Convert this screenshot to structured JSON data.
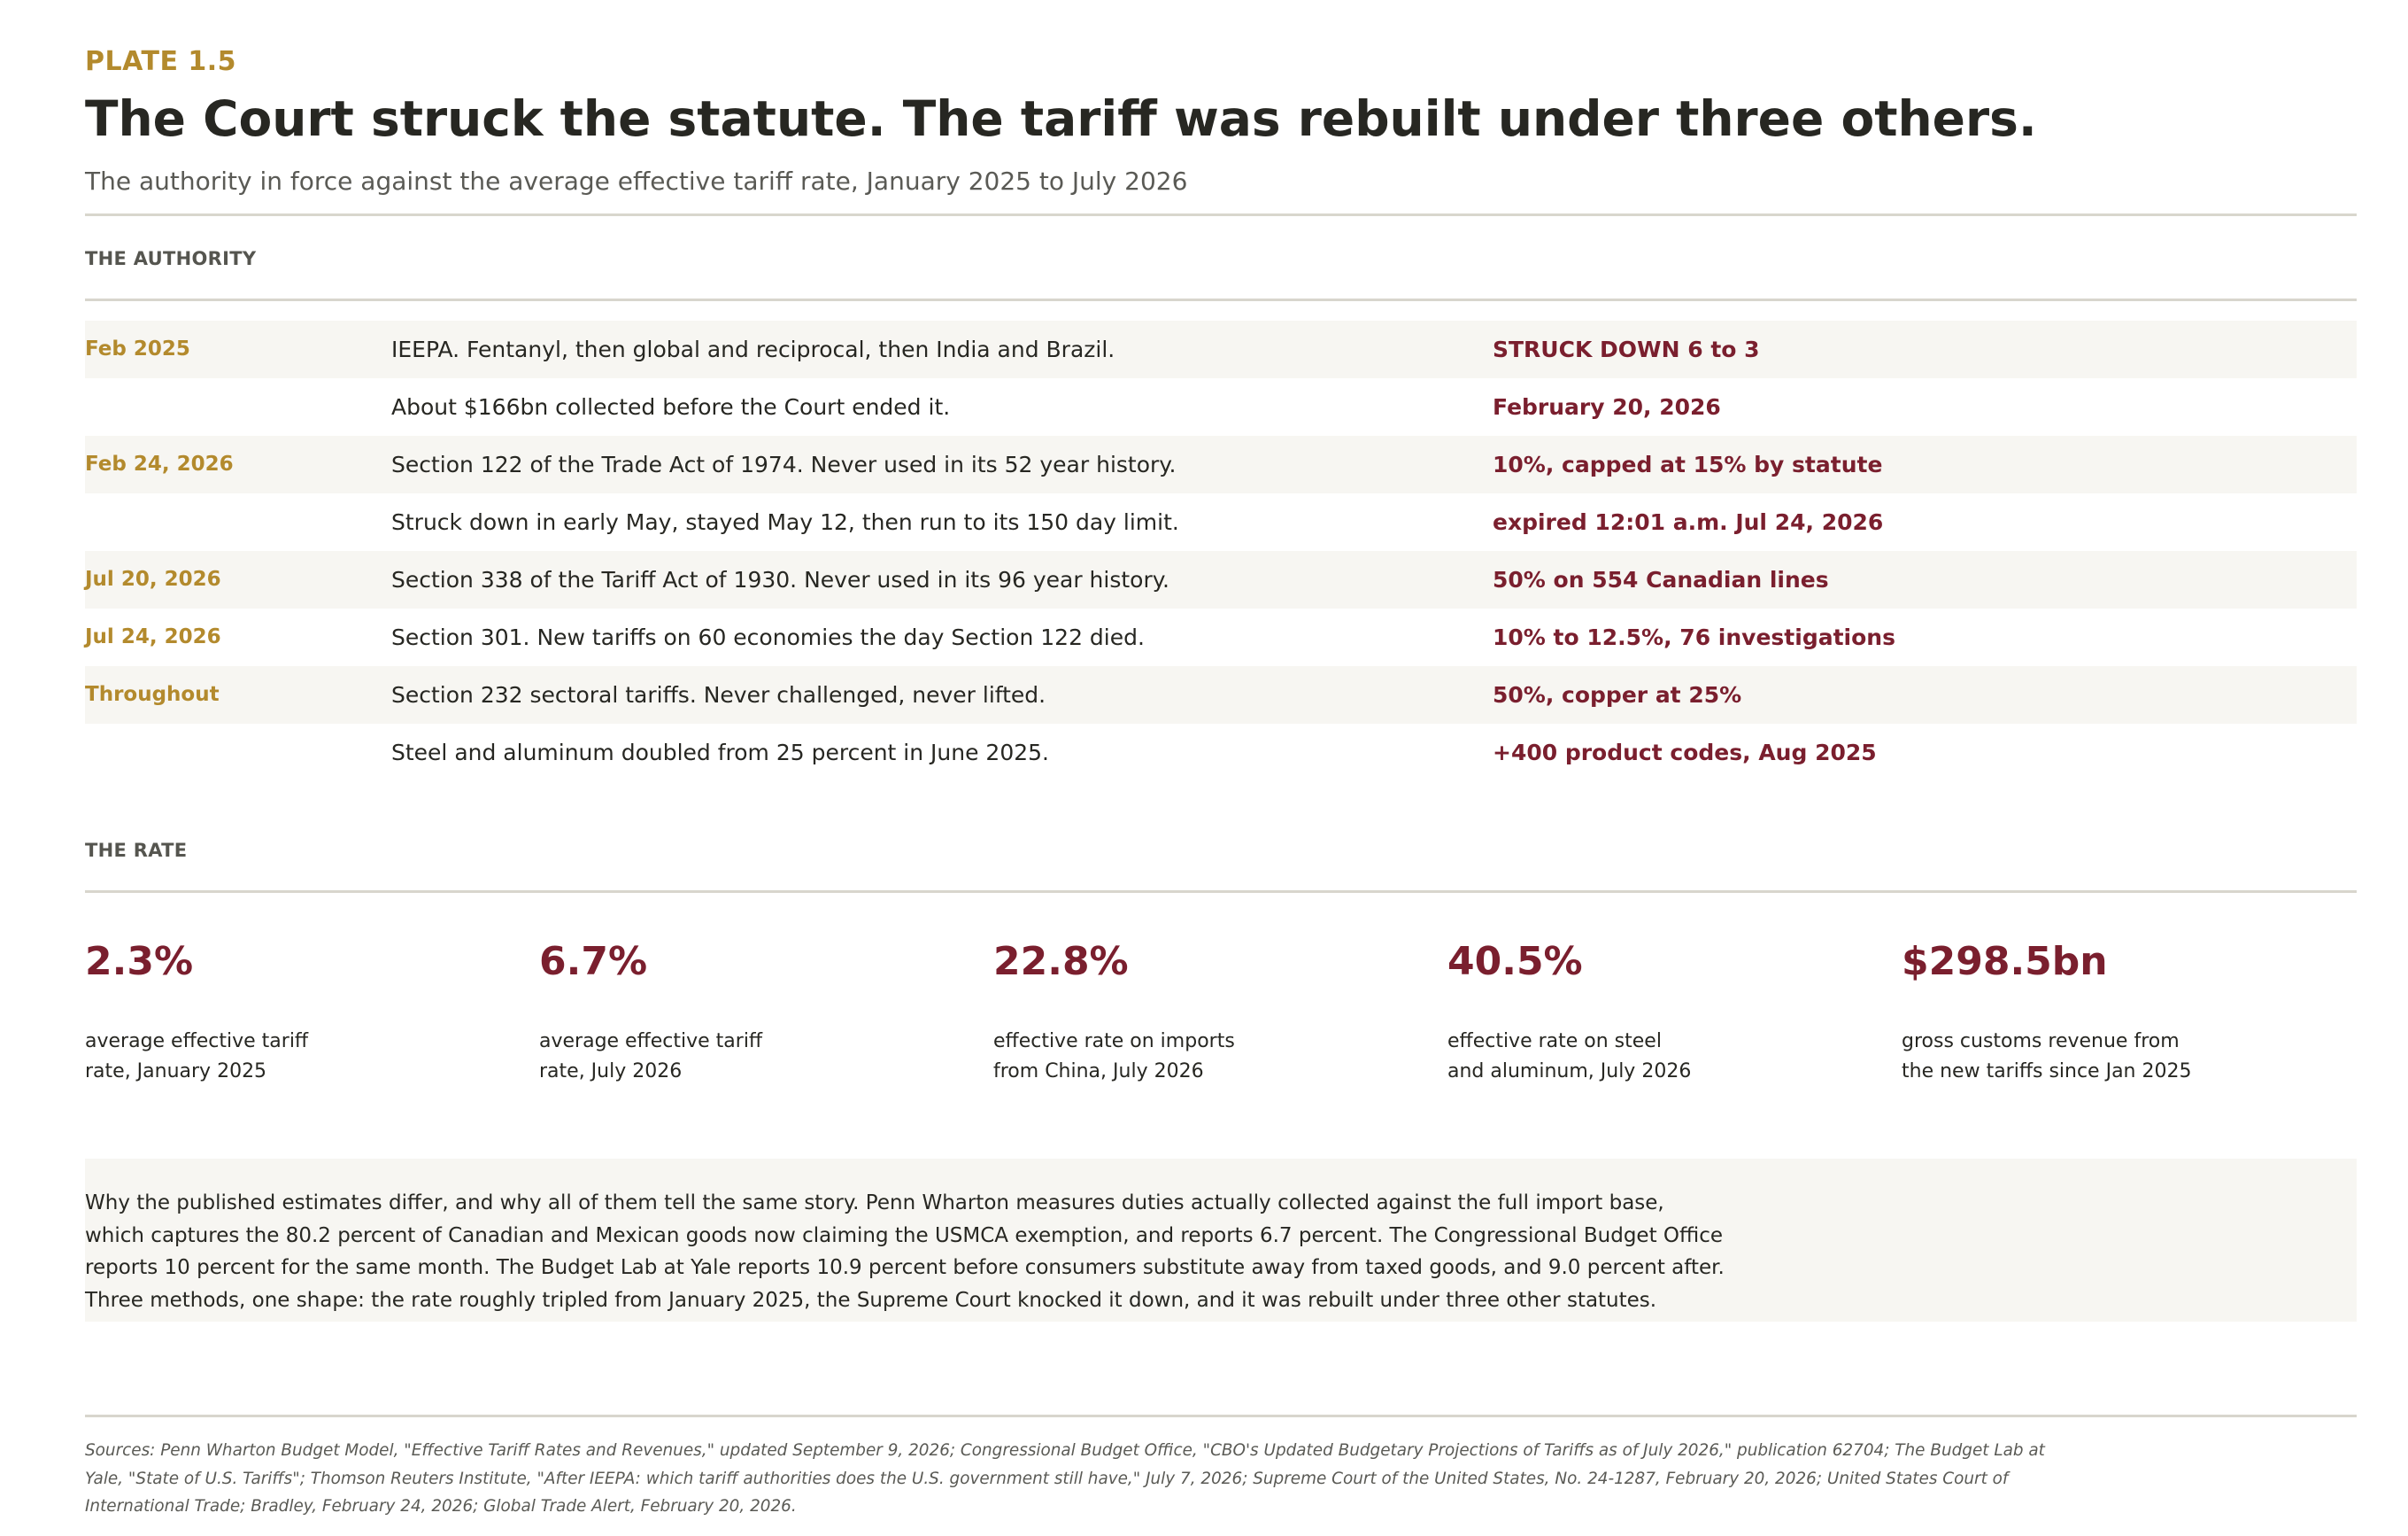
{
  "header": {
    "plate": "PLATE 1.5",
    "title": "The Court struck the statute. The tariff was rebuilt under three others.",
    "subtitle": "The authority in force against the average effective tariff rate, January 2025 to July 2026"
  },
  "authority": {
    "label": "THE AUTHORITY",
    "rows": [
      {
        "date": "Feb 2025",
        "description": "IEEPA. Fentanyl, then global and reciprocal, then India and Brazil.",
        "result": "STRUCK DOWN 6 to 3"
      },
      {
        "date": "",
        "description": "About $166bn collected before the Court ended it.",
        "result": "February 20, 2026"
      },
      {
        "date": "Feb 24, 2026",
        "description": "Section 122 of the Trade Act of 1974. Never used in its 52 year history.",
        "result": "10%, capped at 15% by statute"
      },
      {
        "date": "",
        "description": "Struck down in early May, stayed May 12, then run to its 150 day limit.",
        "result": "expired 12:01 a.m. Jul 24, 2026"
      },
      {
        "date": "Jul 20, 2026",
        "description": "Section 338 of the Tariff Act of 1930. Never used in its 96 year history.",
        "result": "50% on 554 Canadian lines"
      },
      {
        "date": "Jul 24, 2026",
        "description": "Section 301. New tariffs on 60 economies the day Section 122 died.",
        "result": "10% to 12.5%, 76 investigations"
      },
      {
        "date": "Throughout",
        "description": "Section 232 sectoral tariffs. Never challenged, never lifted.",
        "result": "50%, copper at 25%"
      },
      {
        "date": "",
        "description": "Steel and aluminum doubled from 25 percent in June 2025.",
        "result": "+400 product codes, Aug 2025"
      }
    ]
  },
  "rate": {
    "label": "THE RATE",
    "stats": [
      {
        "value": "2.3%",
        "line1": "average effective tariff",
        "line2": "rate, January 2025"
      },
      {
        "value": "6.7%",
        "line1": "average effective tariff",
        "line2": "rate, July 2026"
      },
      {
        "value": "22.8%",
        "line1": "effective rate on imports",
        "line2": "from China, July 2026"
      },
      {
        "value": "40.5%",
        "line1": "effective rate on steel",
        "line2": "and aluminum, July 2026"
      },
      {
        "value": "$298.5bn",
        "line1": "gross customs revenue from",
        "line2": "the new tariffs since Jan 2025"
      }
    ]
  },
  "note": {
    "lines": [
      "Why the published estimates differ, and why all of them tell the same story. Penn Wharton measures duties actually collected against the full import base,",
      "which captures the 80.2 percent of Canadian and Mexican goods now claiming the USMCA exemption, and reports 6.7 percent. The Congressional Budget Office",
      "reports 10 percent for the same month. The Budget Lab at Yale reports 10.9 percent before consumers substitute away from taxed goods, and 9.0 percent after.",
      "Three methods, one shape: the rate roughly tripled from January 2025, the Supreme Court knocked it down, and it was rebuilt under three other statutes."
    ]
  },
  "sources": {
    "lines": [
      "Sources: Penn Wharton Budget Model, \"Effective Tariff Rates and Revenues,\" updated September 9, 2026; Congressional Budget Office, \"CBO's Updated Budgetary Projections of Tariffs as of July 2026,\" publication 62704; The Budget Lab at",
      "Yale, \"State of U.S. Tariffs\"; Thomson Reuters Institute, \"After IEEPA: which tariff authorities does the U.S. government still have,\" July 7, 2026; Supreme Court of the United States, No. 24-1287, February 20, 2026; United States Court of",
      "International Trade; Bradley, February 24, 2026; Global Trade Alert, February 20, 2026."
    ]
  }
}
